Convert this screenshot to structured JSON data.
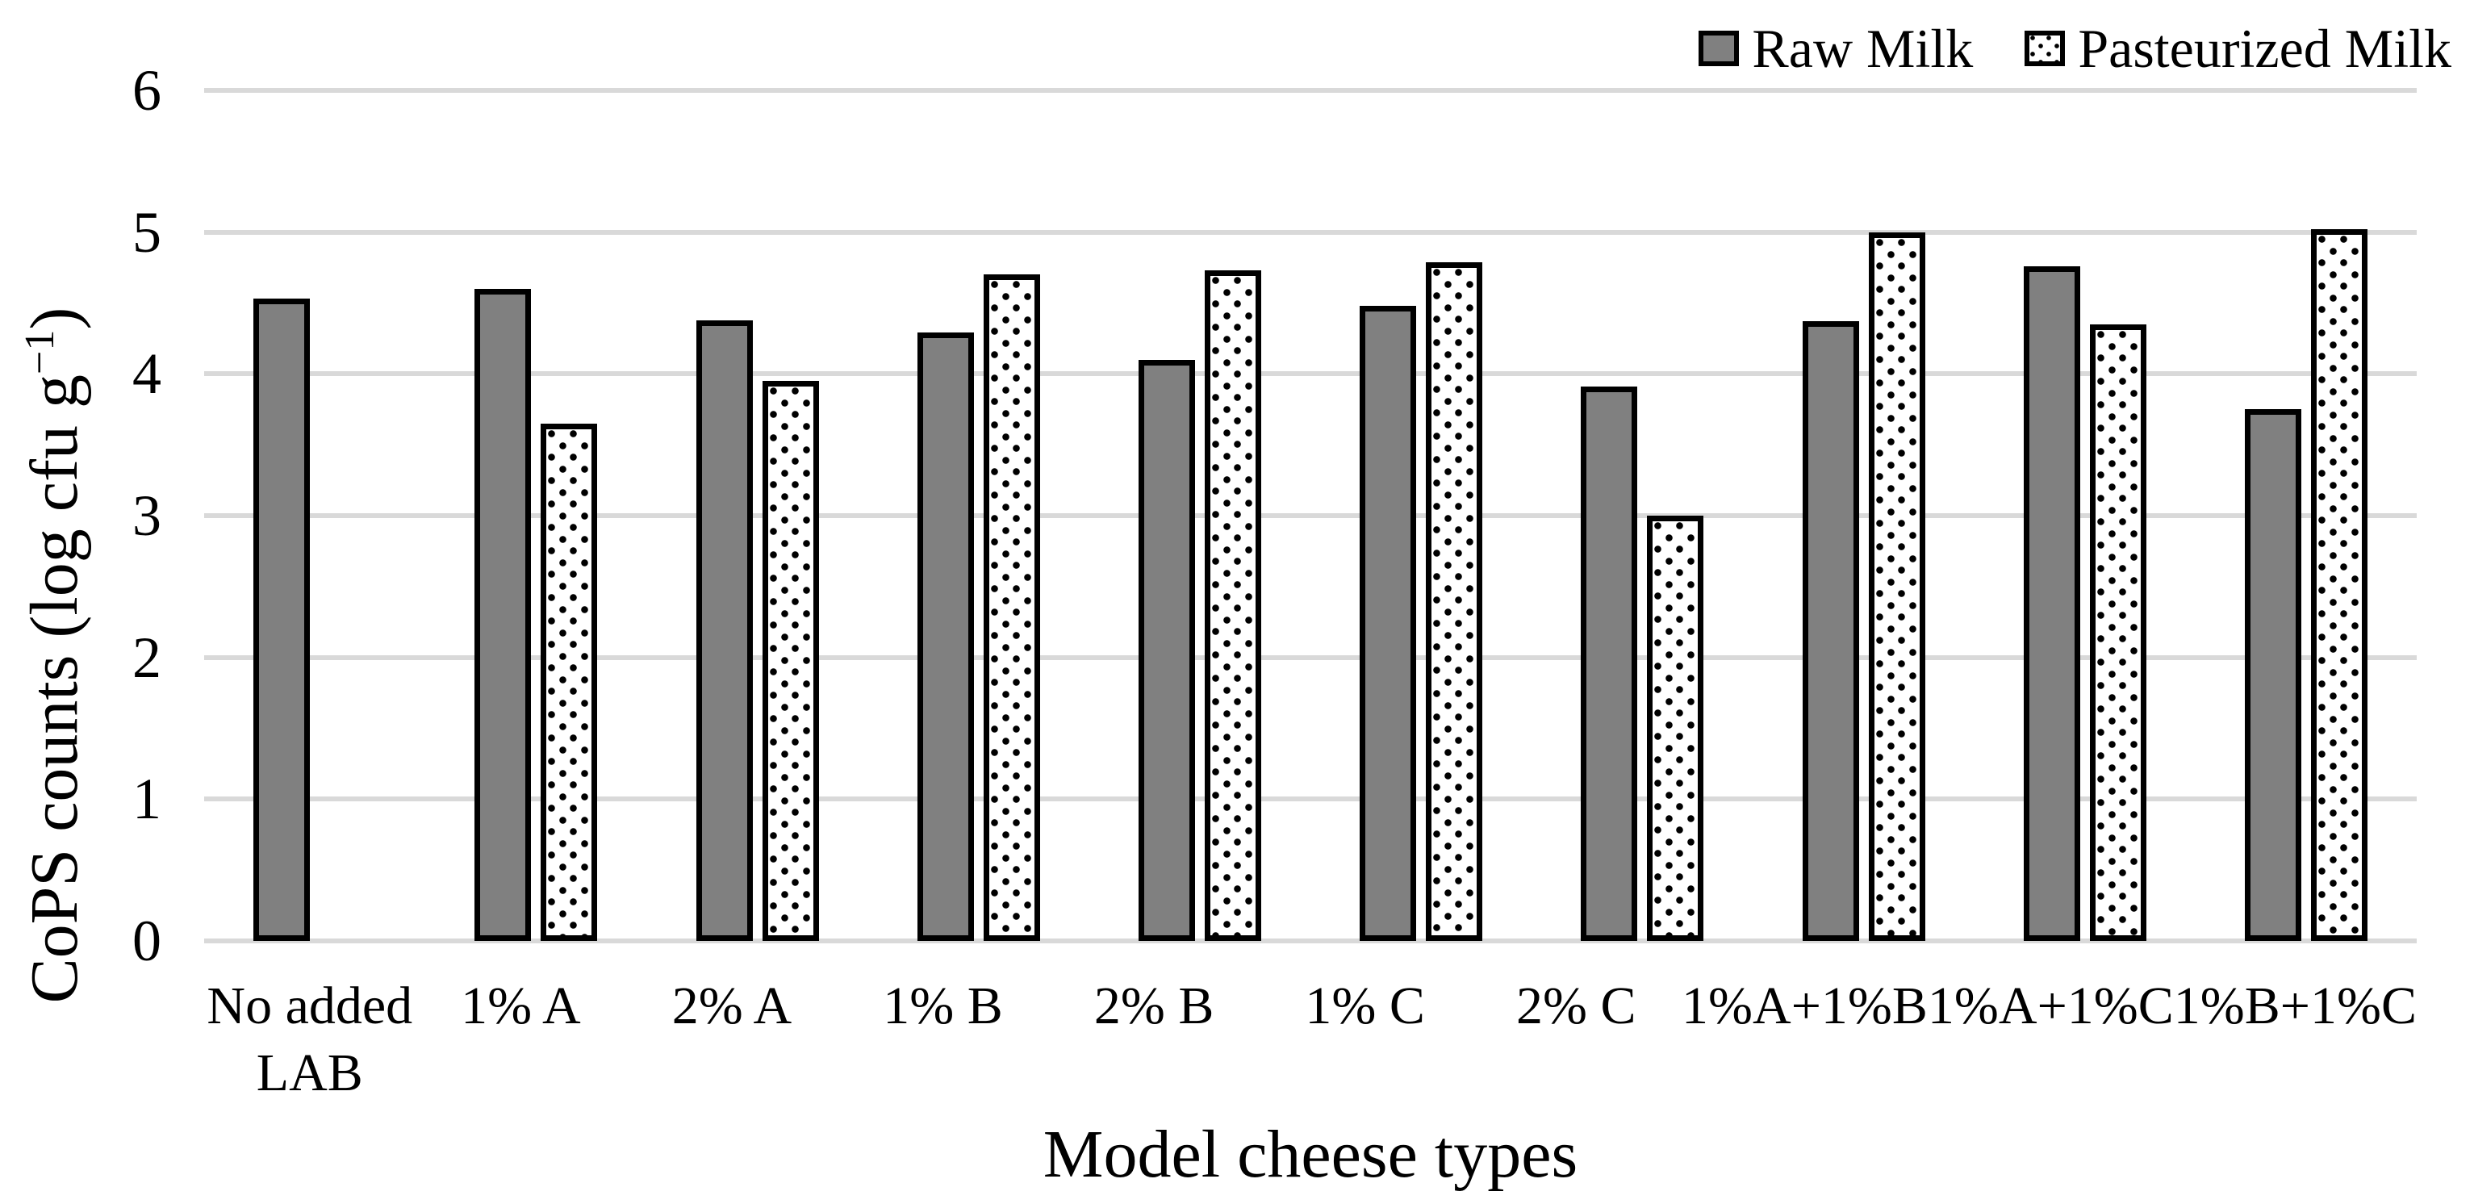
{
  "figure": {
    "colors": {
      "raw_fill": "#808080",
      "pasteurized_fill": "#ffffff",
      "pasteurized_dot": "#000000",
      "bar_border": "#000000",
      "gridline": "#d9d9d9",
      "background": "#ffffff",
      "text": "#000000"
    },
    "legend": {
      "raw_label": "Raw Milk",
      "pasteurized_label": "Pasteurized Milk"
    },
    "ylabel_parts": {
      "pre": "CoPS counts (log cfu g",
      "sup": "−1",
      "post": ")"
    }
  },
  "chart_data": {
    "type": "bar",
    "title": "",
    "xlabel": "Model cheese types",
    "ylabel": "CoPS counts (log cfu g⁻¹)",
    "ylim": [
      0,
      6
    ],
    "yticks": [
      0,
      1,
      2,
      3,
      4,
      5,
      6
    ],
    "grid": "horizontal",
    "legend_position": "top-right",
    "categories": [
      "No added LAB",
      "1% A",
      "2% A",
      "1% B",
      "2% B",
      "1% C",
      "2% C",
      "1%A+1%B",
      "1%A+1%C",
      "1%B+1%C"
    ],
    "series": [
      {
        "name": "Raw Milk",
        "values": [
          4.53,
          4.6,
          4.38,
          4.29,
          4.1,
          4.48,
          3.91,
          4.37,
          4.76,
          3.75
        ]
      },
      {
        "name": "Pasteurized Milk",
        "values": [
          null,
          3.65,
          3.95,
          4.7,
          4.73,
          4.79,
          3.0,
          5.0,
          4.35,
          5.02
        ]
      }
    ]
  }
}
